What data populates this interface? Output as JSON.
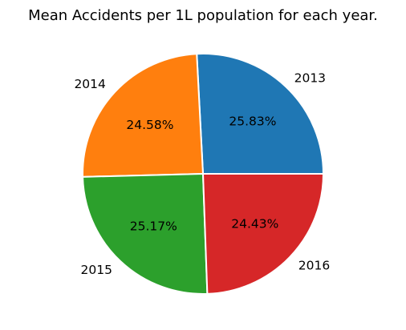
{
  "chart_data": {
    "type": "pie",
    "title": "Mean Accidents per 1L population for each year.",
    "categories": [
      "2013",
      "2014",
      "2015",
      "2016"
    ],
    "values": [
      25.83,
      24.58,
      25.17,
      24.43
    ],
    "value_labels": [
      "25.83%",
      "24.58%",
      "25.17%",
      "24.43%"
    ],
    "colors": [
      "#1f77b4",
      "#ff7f0e",
      "#2ca02c",
      "#d62728"
    ],
    "start_angle": "3 o'clock",
    "direction": "counter-clockwise",
    "legend": "none"
  }
}
